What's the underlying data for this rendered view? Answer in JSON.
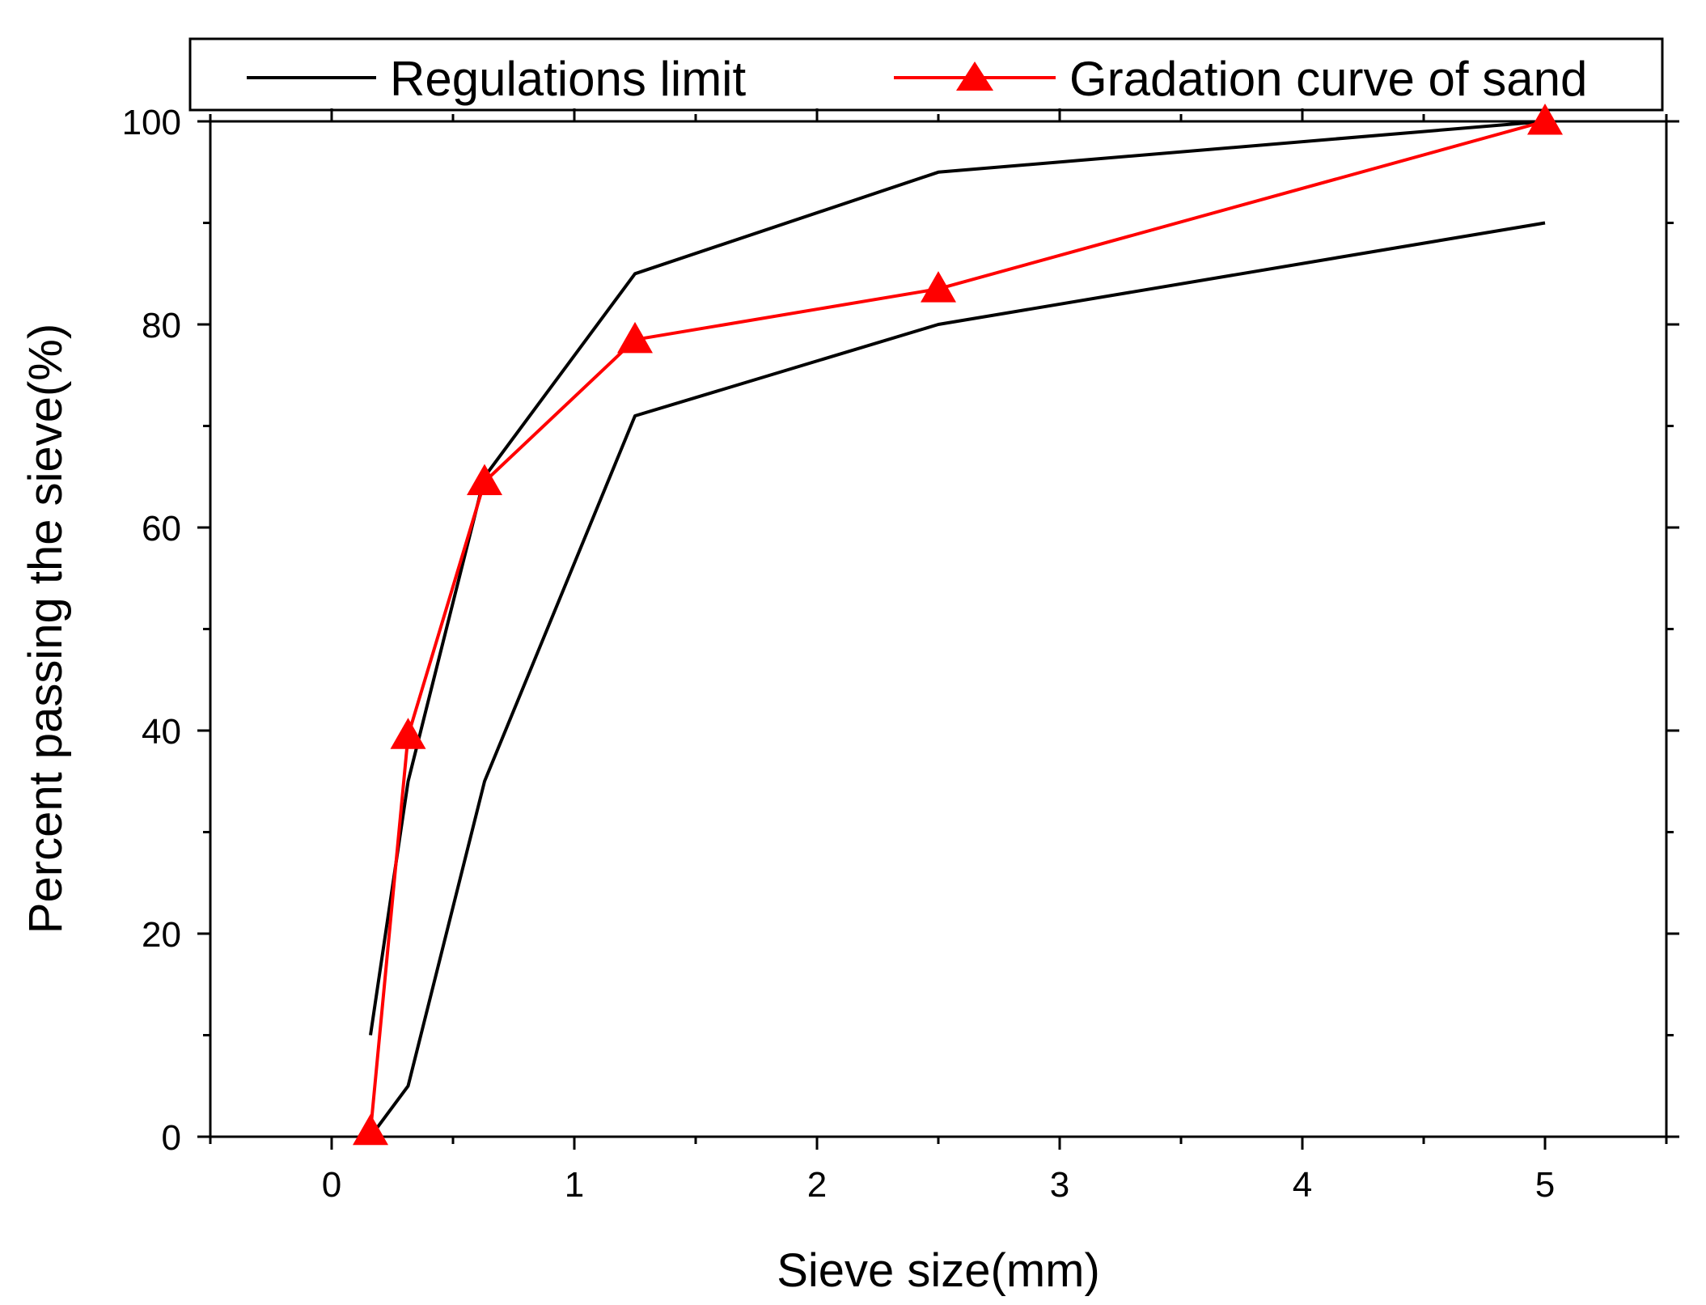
{
  "chart_data": {
    "type": "line",
    "title": "",
    "xlabel": "Sieve size(mm)",
    "ylabel": "Percent passing the sieve(%)",
    "xlim": [
      -0.5,
      5.5
    ],
    "ylim": [
      0,
      100
    ],
    "x_ticks": [
      0,
      1,
      2,
      3,
      4,
      5
    ],
    "x_tick_labels": [
      "0",
      "1",
      "2",
      "3",
      "4",
      "5"
    ],
    "x_minor_ticks": [
      -0.5,
      0.5,
      1.5,
      2.5,
      3.5,
      4.5,
      5.5
    ],
    "y_ticks": [
      0,
      20,
      40,
      60,
      80,
      100
    ],
    "y_tick_labels": [
      "0",
      "20",
      "40",
      "60",
      "80",
      "100"
    ],
    "y_minor_ticks": [
      10,
      30,
      50,
      70,
      90
    ],
    "grid": false,
    "legend_position": "top",
    "legend": {
      "regulations_label": "Regulations limit",
      "gradation_label": "Gradation curve of sand"
    },
    "series": [
      {
        "name": "Regulations limit (upper)",
        "legend_key": "regulations",
        "color": "#000000",
        "marker": "none",
        "x": [
          0.16,
          0.315,
          0.63,
          1.25,
          2.5,
          5.0
        ],
        "y": [
          10,
          35,
          65,
          85,
          95,
          100
        ]
      },
      {
        "name": "Regulations limit (lower)",
        "legend_key": "regulations",
        "color": "#000000",
        "marker": "none",
        "x": [
          0.16,
          0.315,
          0.63,
          1.25,
          2.5,
          5.0
        ],
        "y": [
          0,
          5,
          35,
          71,
          80,
          90
        ]
      },
      {
        "name": "Gradation curve of sand",
        "legend_key": "gradation",
        "color": "#ff0000",
        "marker": "triangle",
        "x": [
          0.16,
          0.315,
          0.63,
          1.25,
          2.5,
          5.0
        ],
        "y": [
          0.5,
          39.5,
          64.5,
          78.5,
          83.5,
          100
        ]
      }
    ]
  }
}
